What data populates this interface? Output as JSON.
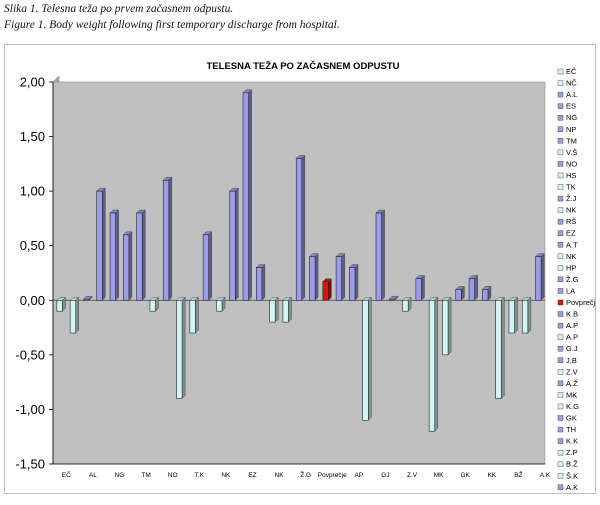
{
  "caption": {
    "line1": "Slika 1. Telesna teža po prvem začasnem odpustu.",
    "line2": "Figure 1. Body weight following first temporary discharge from hospital."
  },
  "colors": {
    "plot_bg": "#c0c0c0",
    "positive_bar": "#9c9ce8",
    "negative_bar": "#d4f4f4",
    "average_bar": "#e01010",
    "wall_bg": "#a8a8a8"
  },
  "chart_data": {
    "type": "bar",
    "title": "TELESNA TEŽA  PO ZAČASNEM ODPUSTU",
    "ylim": [
      -1.5,
      2.0
    ],
    "yticks": [
      "2,00",
      "1,50",
      "1,00",
      "0,50",
      "0,00",
      "-0,50",
      "-1,00",
      "-1,50"
    ],
    "ytick_values": [
      2.0,
      1.5,
      1.0,
      0.5,
      0.0,
      -0.5,
      -1.0,
      -1.5
    ],
    "grid": false,
    "legend_position": "right",
    "categories": [
      "EČ",
      "NČ",
      "A.L",
      "ES",
      "NG",
      "NP",
      "TM",
      "V.Š",
      "NO",
      "HS",
      "TK",
      "Ž.J",
      "NK",
      "RŠ",
      "EZ",
      "A.T",
      "NK",
      "HP",
      "Ž.G",
      "LA",
      "Povprečje",
      "K.B",
      "A.P",
      "A.P",
      "G.J",
      "J.B",
      "Z.V",
      "A.Ž",
      "MK",
      "K.G",
      "GK",
      "TH",
      "K.K",
      "Z.P",
      "B.Ž",
      "Š.K",
      "A.K"
    ],
    "values": [
      -0.1,
      -0.3,
      0.01,
      1.0,
      0.8,
      0.6,
      0.8,
      -0.1,
      1.1,
      -0.9,
      -0.3,
      0.6,
      -0.1,
      1.0,
      1.9,
      0.3,
      -0.2,
      -0.2,
      1.3,
      0.4,
      0.17,
      0.4,
      0.3,
      -1.1,
      0.8,
      0.01,
      -0.1,
      0.2,
      -1.2,
      -0.5,
      0.1,
      0.2,
      0.1,
      -0.9,
      -0.3,
      -0.3,
      0.4
    ],
    "average_index": 20,
    "x_tick_labels": [
      "EČ",
      "AL",
      "NG",
      "TM",
      "NO",
      "T.K",
      "NK",
      "EZ",
      "NK",
      "Ž.G",
      "Povprečje",
      "AP",
      "GJ",
      "Z.V",
      "MK",
      "GK",
      "KK",
      "BŽ",
      "A.K"
    ]
  }
}
